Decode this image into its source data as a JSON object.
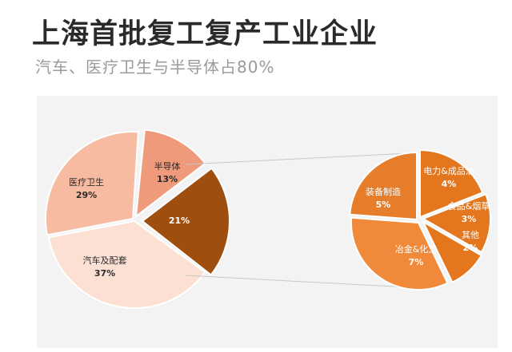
{
  "header": {
    "title": "上海首批复工复产工业企业",
    "subtitle": "汽车、医疗卫生与半导体占80%"
  },
  "chart_data": [
    {
      "type": "pie",
      "slices": [
        {
          "label": "汽车及配套",
          "value": 37,
          "value_label": "37%",
          "color": "#fbe0d3"
        },
        {
          "label": "医疗卫生",
          "value": 29,
          "value_label": "29%",
          "color": "#f6bba0"
        },
        {
          "label": "半导体",
          "value": 13,
          "value_label": "13%",
          "color": "#ef9a7a"
        },
        {
          "label": "",
          "value": 21,
          "value_label": "21%",
          "color": "#9e4f10"
        }
      ]
    },
    {
      "type": "pie",
      "slices": [
        {
          "label": "电力&成品油",
          "value": 4,
          "value_label": "4%",
          "color": "#e4761d"
        },
        {
          "label": "食品&烟草",
          "value": 3,
          "value_label": "3%",
          "color": "#e4761d"
        },
        {
          "label": "其他",
          "value": 2,
          "value_label": "2%",
          "color": "#e4761d"
        },
        {
          "label": "冶金&化工",
          "value": 7,
          "value_label": "7%",
          "color": "#f08a3a"
        },
        {
          "label": "装备制造",
          "value": 5,
          "value_label": "5%",
          "color": "#e57d2a"
        }
      ]
    }
  ]
}
